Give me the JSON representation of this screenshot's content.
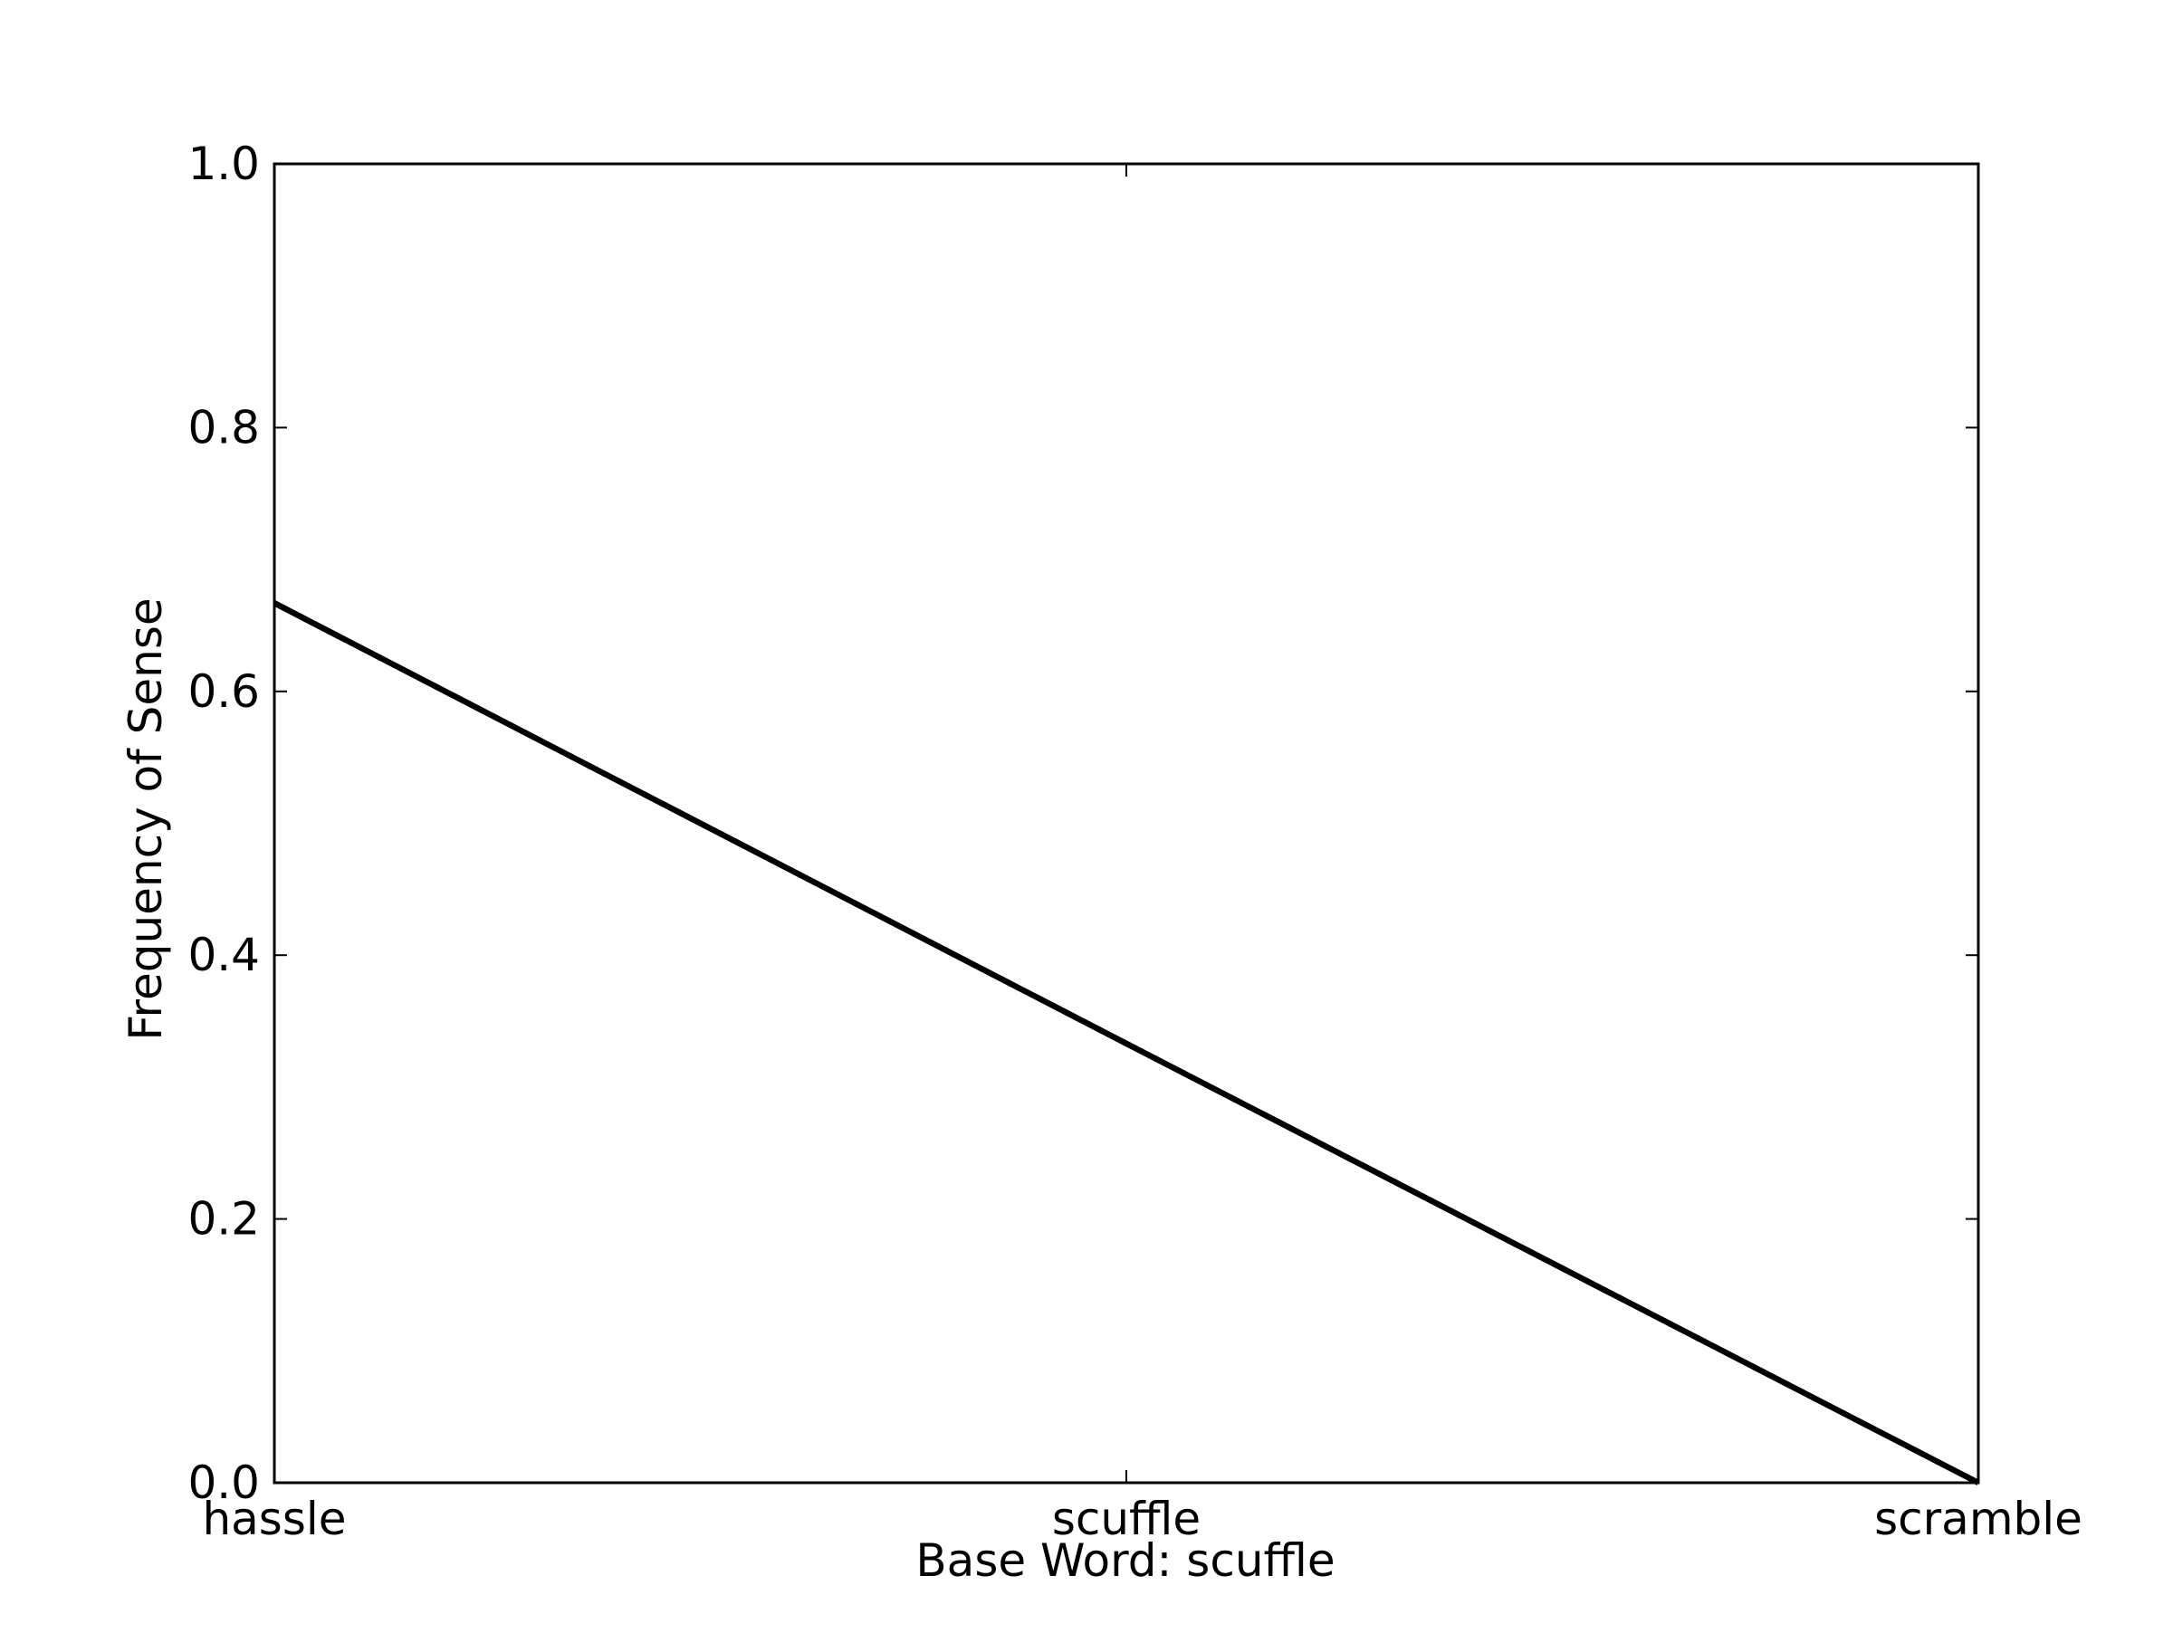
{
  "chart_data": {
    "type": "line",
    "categories": [
      "hassle",
      "scuffle",
      "scramble"
    ],
    "x": [
      0,
      1,
      2
    ],
    "series": [
      {
        "values": [
          0.667,
          0.333,
          0.0
        ]
      }
    ],
    "xlabel": "Base Word: scuffle",
    "ylabel": "Frequency of Sense",
    "ylim": [
      0.0,
      1.0
    ],
    "xlim": [
      0,
      2
    ],
    "yticks": [
      "0.0",
      "0.2",
      "0.4",
      "0.6",
      "0.8",
      "1.0"
    ],
    "grid": false,
    "line_color": "#000000"
  }
}
